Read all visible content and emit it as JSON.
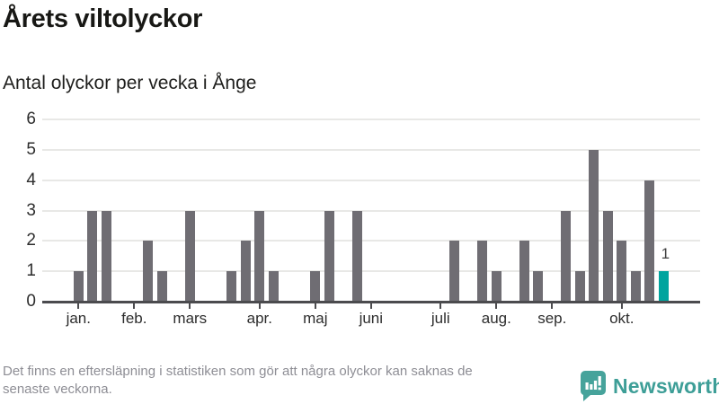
{
  "title": "Årets viltolyckor",
  "subtitle": "Antal olyckor per vecka i Ånge",
  "chart_data": {
    "type": "bar",
    "title": "Årets viltolyckor",
    "subtitle": "Antal olyckor per vecka i Ånge",
    "x_unit": "vecka",
    "ylim": [
      0,
      6
    ],
    "y_ticks": [
      0,
      1,
      2,
      3,
      4,
      5,
      6
    ],
    "grid": true,
    "weeks": 43,
    "values": [
      1,
      3,
      3,
      0,
      0,
      2,
      1,
      0,
      3,
      0,
      0,
      1,
      2,
      3,
      1,
      0,
      0,
      1,
      3,
      0,
      3,
      0,
      0,
      0,
      0,
      0,
      0,
      2,
      0,
      2,
      1,
      0,
      2,
      1,
      0,
      3,
      1,
      5,
      3,
      2,
      1,
      4,
      1
    ],
    "highlight_last_bar": true,
    "highlight_value_label": "1",
    "month_ticks": [
      {
        "label": "jan.",
        "week": 1
      },
      {
        "label": "feb.",
        "week": 5
      },
      {
        "label": "mars",
        "week": 9
      },
      {
        "label": "apr.",
        "week": 14
      },
      {
        "label": "maj",
        "week": 18
      },
      {
        "label": "juni",
        "week": 22
      },
      {
        "label": "juli",
        "week": 27
      },
      {
        "label": "aug.",
        "week": 31
      },
      {
        "label": "sep.",
        "week": 35
      },
      {
        "label": "okt.",
        "week": 40
      }
    ],
    "colors": {
      "bar": "#6f6d73",
      "highlight": "#00a49e",
      "axis": "#4b4b4e",
      "grid": "#e8e8e6"
    },
    "legend_position": "none"
  },
  "footer": {
    "lines": [
      "Det finns en eftersläpning i statistiken som gör att några olyckor kan saknas de",
      "senaste veckorna."
    ]
  },
  "logo": {
    "text": "Newsworthy",
    "color": "#3d9e97",
    "icon": "newsworthy-bar-chart-bubble-icon"
  }
}
